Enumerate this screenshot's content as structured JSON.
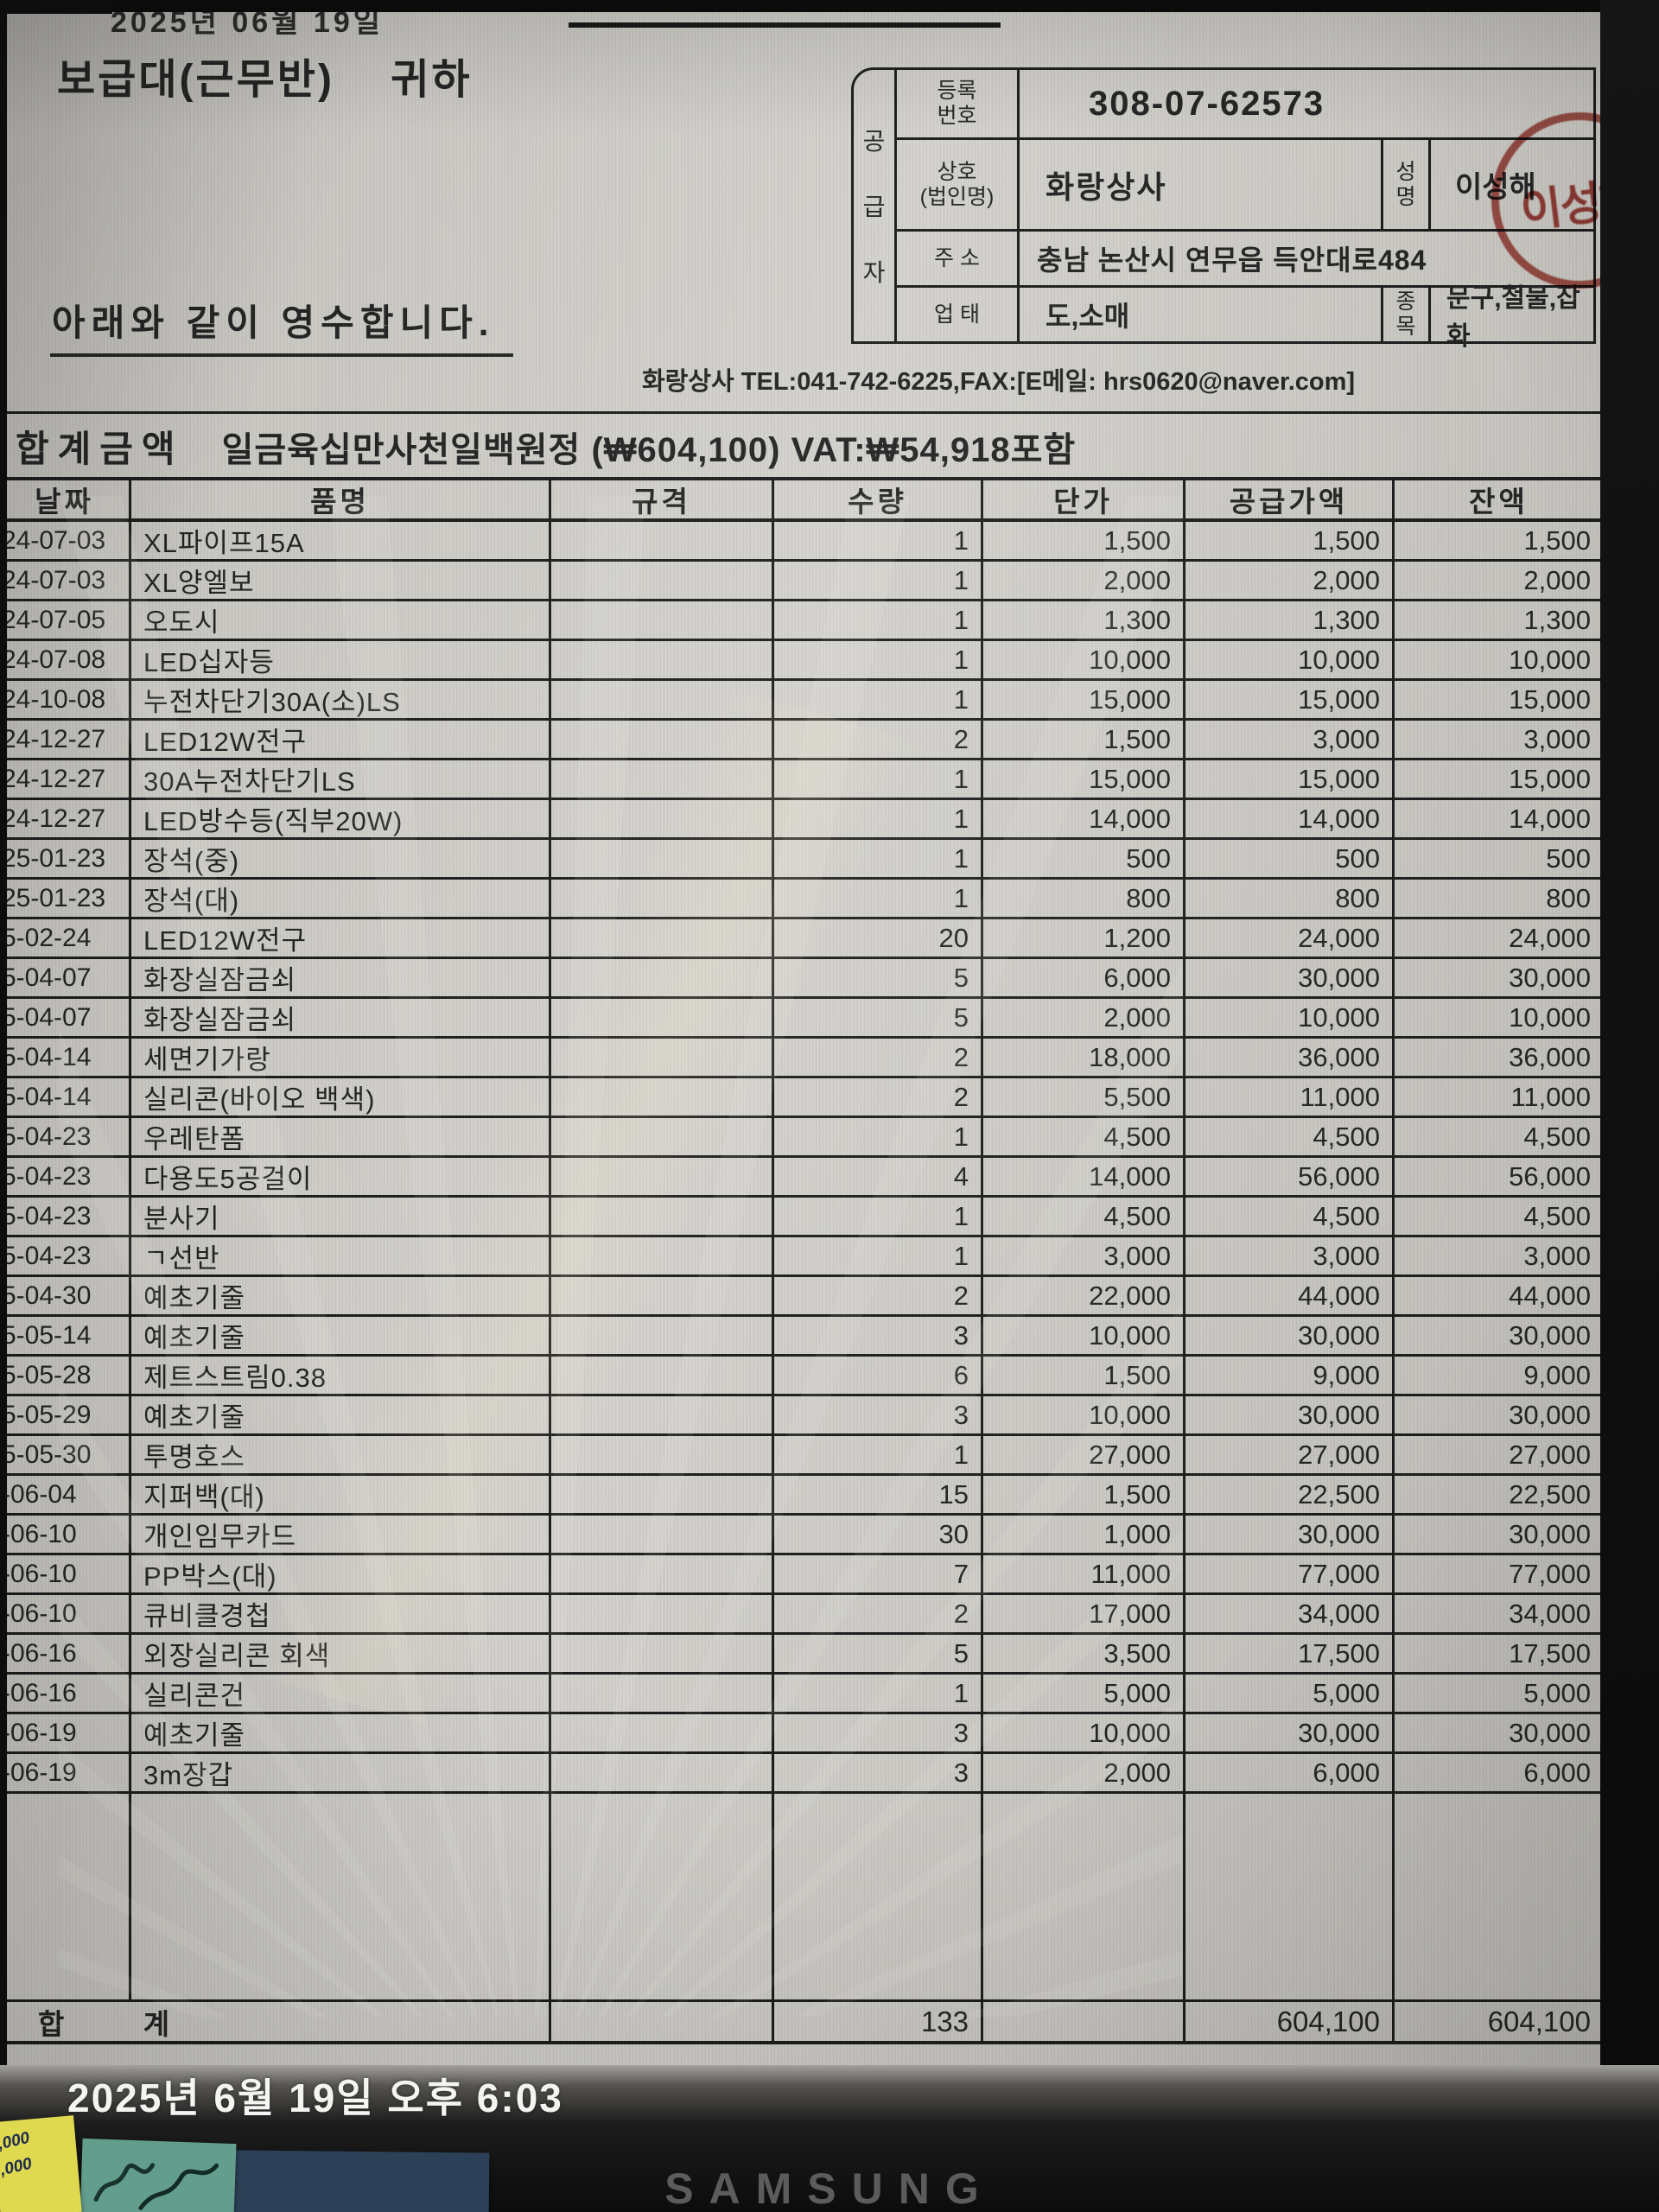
{
  "screen": {
    "top_cropped_text": "2025년 06월 19일",
    "photo_timestamp": "2025년 6월 19일 오후 6:03",
    "monitor_brand": "SAMSUNG",
    "sticky_notes": {
      "yellow_lines": [
        ",000",
        ",000"
      ]
    }
  },
  "colors": {
    "stamp_red": "#a8342b",
    "paper": "#c9c7c2",
    "ink": "#232323"
  },
  "receipt": {
    "recipient": "보급대(근무반)    귀하",
    "statement": "아래와 같이 영수합니다.",
    "supplier": {
      "role_chars": [
        "공",
        "급",
        "자"
      ],
      "reg_label": [
        "등록",
        "번호"
      ],
      "reg_no": "308-07-62573",
      "company_label": [
        "상호",
        "(법인명)"
      ],
      "company": "화랑상사",
      "name_label": [
        "성",
        "명"
      ],
      "name": "이성해",
      "stamp_text": "이성해",
      "addr_label": "주 소",
      "address": "충남 논산시 연무읍 득안대로484",
      "biztype_label": "업 태",
      "biztype": "도,소매",
      "bizitem_label": [
        "종",
        "목"
      ],
      "bizitem": "문구,철물,잡화"
    },
    "contact_line": "화랑상사 TEL:041-742-6225,FAX:[E메일: hrs0620@naver.com]",
    "grand_total_label": "합계금액",
    "grand_total_text": "일금육십만사천일백원정 (₩604,100) VAT:₩54,918포함",
    "table": {
      "headers": [
        "날짜",
        "품명",
        "규격",
        "수량",
        "단가",
        "공급가액",
        "잔액"
      ],
      "rows": [
        {
          "date": "24-07-03",
          "item": "XL파이프15A",
          "spec": "",
          "qty": "1",
          "unit": "1,500",
          "supply": "1,500",
          "balance": "1,500"
        },
        {
          "date": "24-07-03",
          "item": "XL양엘보",
          "spec": "",
          "qty": "1",
          "unit": "2,000",
          "supply": "2,000",
          "balance": "2,000"
        },
        {
          "date": "24-07-05",
          "item": "오도시",
          "spec": "",
          "qty": "1",
          "unit": "1,300",
          "supply": "1,300",
          "balance": "1,300"
        },
        {
          "date": "24-07-08",
          "item": "LED십자등",
          "spec": "",
          "qty": "1",
          "unit": "10,000",
          "supply": "10,000",
          "balance": "10,000"
        },
        {
          "date": "24-10-08",
          "item": "누전차단기30A(소)LS",
          "spec": "",
          "qty": "1",
          "unit": "15,000",
          "supply": "15,000",
          "balance": "15,000"
        },
        {
          "date": "24-12-27",
          "item": "LED12W전구",
          "spec": "",
          "qty": "2",
          "unit": "1,500",
          "supply": "3,000",
          "balance": "3,000"
        },
        {
          "date": "24-12-27",
          "item": "30A누전차단기LS",
          "spec": "",
          "qty": "1",
          "unit": "15,000",
          "supply": "15,000",
          "balance": "15,000"
        },
        {
          "date": "24-12-27",
          "item": "LED방수등(직부20W)",
          "spec": "",
          "qty": "1",
          "unit": "14,000",
          "supply": "14,000",
          "balance": "14,000"
        },
        {
          "date": "25-01-23",
          "item": "장석(중)",
          "spec": "",
          "qty": "1",
          "unit": "500",
          "supply": "500",
          "balance": "500"
        },
        {
          "date": "25-01-23",
          "item": "장석(대)",
          "spec": "",
          "qty": "1",
          "unit": "800",
          "supply": "800",
          "balance": "800"
        },
        {
          "date": "5-02-24",
          "item": "LED12W전구",
          "spec": "",
          "qty": "20",
          "unit": "1,200",
          "supply": "24,000",
          "balance": "24,000"
        },
        {
          "date": "5-04-07",
          "item": "화장실잠금쇠",
          "spec": "",
          "qty": "5",
          "unit": "6,000",
          "supply": "30,000",
          "balance": "30,000"
        },
        {
          "date": "5-04-07",
          "item": "화장실잠금쇠",
          "spec": "",
          "qty": "5",
          "unit": "2,000",
          "supply": "10,000",
          "balance": "10,000"
        },
        {
          "date": "5-04-14",
          "item": "세면기가랑",
          "spec": "",
          "qty": "2",
          "unit": "18,000",
          "supply": "36,000",
          "balance": "36,000"
        },
        {
          "date": "5-04-14",
          "item": "실리콘(바이오 백색)",
          "spec": "",
          "qty": "2",
          "unit": "5,500",
          "supply": "11,000",
          "balance": "11,000"
        },
        {
          "date": "5-04-23",
          "item": "우레탄폼",
          "spec": "",
          "qty": "1",
          "unit": "4,500",
          "supply": "4,500",
          "balance": "4,500"
        },
        {
          "date": "5-04-23",
          "item": "다용도5공걸이",
          "spec": "",
          "qty": "4",
          "unit": "14,000",
          "supply": "56,000",
          "balance": "56,000"
        },
        {
          "date": "5-04-23",
          "item": "분사기",
          "spec": "",
          "qty": "1",
          "unit": "4,500",
          "supply": "4,500",
          "balance": "4,500"
        },
        {
          "date": "5-04-23",
          "item": "ㄱ선반",
          "spec": "",
          "qty": "1",
          "unit": "3,000",
          "supply": "3,000",
          "balance": "3,000"
        },
        {
          "date": "5-04-30",
          "item": "예초기줄",
          "spec": "",
          "qty": "2",
          "unit": "22,000",
          "supply": "44,000",
          "balance": "44,000"
        },
        {
          "date": "5-05-14",
          "item": "예초기줄",
          "spec": "",
          "qty": "3",
          "unit": "10,000",
          "supply": "30,000",
          "balance": "30,000"
        },
        {
          "date": "5-05-28",
          "item": "제트스트림0.38",
          "spec": "",
          "qty": "6",
          "unit": "1,500",
          "supply": "9,000",
          "balance": "9,000"
        },
        {
          "date": "5-05-29",
          "item": "예초기줄",
          "spec": "",
          "qty": "3",
          "unit": "10,000",
          "supply": "30,000",
          "balance": "30,000"
        },
        {
          "date": "5-05-30",
          "item": "투명호스",
          "spec": "",
          "qty": "1",
          "unit": "27,000",
          "supply": "27,000",
          "balance": "27,000"
        },
        {
          "date": "-06-04",
          "item": "지퍼백(대)",
          "spec": "",
          "qty": "15",
          "unit": "1,500",
          "supply": "22,500",
          "balance": "22,500"
        },
        {
          "date": "-06-10",
          "item": "개인임무카드",
          "spec": "",
          "qty": "30",
          "unit": "1,000",
          "supply": "30,000",
          "balance": "30,000"
        },
        {
          "date": "-06-10",
          "item": "PP박스(대)",
          "spec": "",
          "qty": "7",
          "unit": "11,000",
          "supply": "77,000",
          "balance": "77,000"
        },
        {
          "date": "-06-10",
          "item": "큐비클경첩",
          "spec": "",
          "qty": "2",
          "unit": "17,000",
          "supply": "34,000",
          "balance": "34,000"
        },
        {
          "date": "-06-16",
          "item": "외장실리콘 회색",
          "spec": "",
          "qty": "5",
          "unit": "3,500",
          "supply": "17,500",
          "balance": "17,500"
        },
        {
          "date": "-06-16",
          "item": "실리콘건",
          "spec": "",
          "qty": "1",
          "unit": "5,000",
          "supply": "5,000",
          "balance": "5,000"
        },
        {
          "date": "-06-19",
          "item": "예초기줄",
          "spec": "",
          "qty": "3",
          "unit": "10,000",
          "supply": "30,000",
          "balance": "30,000"
        },
        {
          "date": "-06-19",
          "item": "3m장갑",
          "spec": "",
          "qty": "3",
          "unit": "2,000",
          "supply": "6,000",
          "balance": "6,000"
        }
      ],
      "total_row": {
        "label": "합        계",
        "qty": "133",
        "supply": "604,100",
        "balance": "604,100"
      }
    }
  }
}
